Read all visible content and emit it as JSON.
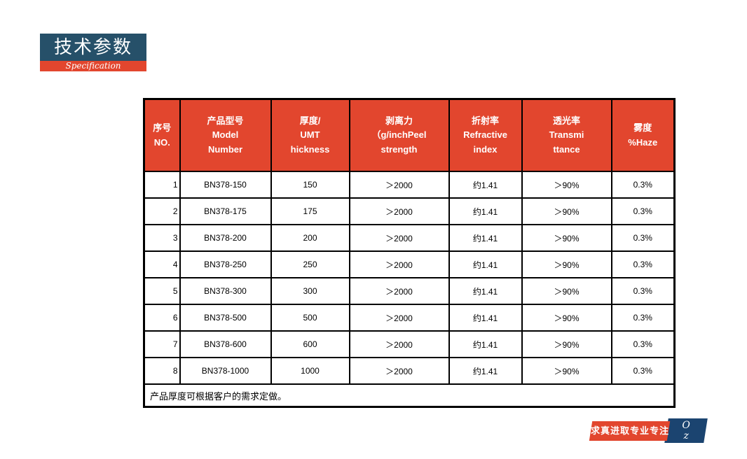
{
  "title": {
    "zh": "技术参数",
    "en": "Specification"
  },
  "table": {
    "headers": [
      "序号\nNO.",
      "产品型号\nModel\nNumber",
      "厚度/\nUMT\nhickness",
      "剥离力\n（g/inchPeel\nstrength",
      "折射率\nRefractive\nindex",
      "透光率\nTransmi\nttance",
      "雾度\n%Haze"
    ],
    "rows": [
      [
        "1",
        "BN378-150",
        "150",
        "＞2000",
        "约1.41",
        "＞90%",
        "0.3%"
      ],
      [
        "2",
        "BN378-175",
        "175",
        "＞2000",
        "约1.41",
        "＞90%",
        "0.3%"
      ],
      [
        "3",
        "BN378-200",
        "200",
        "＞2000",
        "约1.41",
        "＞90%",
        "0.3%"
      ],
      [
        "4",
        "BN378-250",
        "250",
        "＞2000",
        "约1.41",
        "＞90%",
        "0.3%"
      ],
      [
        "5",
        "BN378-300",
        "300",
        "＞2000",
        "约1.41",
        "＞90%",
        "0.3%"
      ],
      [
        "6",
        "BN378-500",
        "500",
        "＞2000",
        "约1.41",
        "＞90%",
        "0.3%"
      ],
      [
        "7",
        "BN378-600",
        "600",
        "＞2000",
        "约1.41",
        "＞90%",
        "0.3%"
      ],
      [
        "8",
        "BN378-1000",
        "1000",
        "＞2000",
        "约1.41",
        "＞90%",
        "0.3%"
      ]
    ],
    "footnote": "产品厚度可根据客户的需求定做。"
  },
  "footer": {
    "slogan": "求真进取专业专注",
    "logo_line1": "O",
    "logo_line2": "z"
  },
  "colors": {
    "accent_red": "#E2462E",
    "title_blue": "#265069",
    "ribbon_blue": "#1B4470"
  }
}
